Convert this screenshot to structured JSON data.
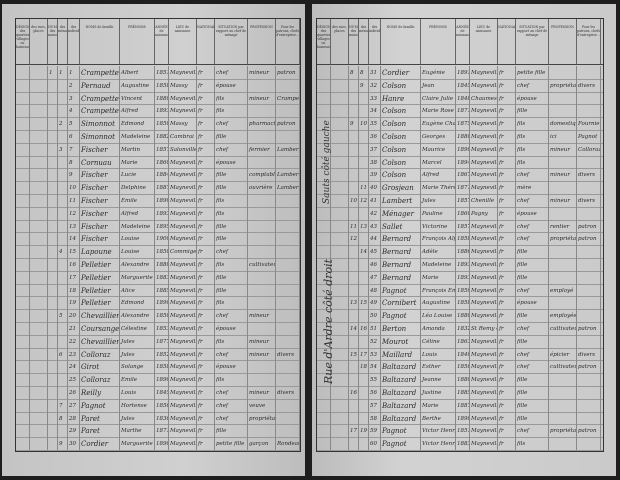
{
  "headers": {
    "designation": "DÉSIGNATION",
    "quartiers": "des quartiers, villages ou hameaux",
    "rues": "des rues, places",
    "numeros": "NUMÉROS",
    "maisons": "des maisons",
    "menages": "des ménages",
    "individus": "des individus",
    "noms": "NOMS de famille",
    "prenoms": "PRÉNOMS",
    "annee": "ANNÉE de naissance",
    "lieu": "LIEU de naissance",
    "nationalite": "NATIONALITÉ",
    "situation": "SITUATION par rapport au chef de ménage",
    "profession": "PROFESSION",
    "patrons": "Pour les patrons, chefs d'entreprise…"
  },
  "left_page": {
    "rows": [
      [
        "1",
        "1",
        "1",
        "Crampette",
        "Albert",
        "1851",
        "Mayneville",
        "fr",
        "chef",
        "mineur",
        "patron"
      ],
      [
        "",
        "",
        "2",
        "Pernaud",
        "Augustine",
        "1858",
        "Massy",
        "fr",
        "épouse",
        "",
        ""
      ],
      [
        "",
        "",
        "3",
        "Crampette",
        "Vincent",
        "1880",
        "Mayneville",
        "fr",
        "fils",
        "mineur",
        "Crampette"
      ],
      [
        "",
        "",
        "4",
        "Crampette",
        "Alfred",
        "1893",
        "Mayneville",
        "fr",
        "fils",
        "",
        ""
      ],
      [
        "",
        "2",
        "5",
        "Simonnot",
        "Edmond",
        "1850",
        "Massy",
        "fr",
        "chef",
        "pharmacien",
        "patron"
      ],
      [
        "",
        "",
        "6",
        "Simonnot",
        "Madeleine",
        "1882",
        "Cambrai",
        "fr",
        "fille",
        "",
        ""
      ],
      [
        "",
        "3",
        "7",
        "Fischer",
        "Martin",
        "1857",
        "Salonville",
        "fr",
        "chef",
        "fermier",
        "Lambert"
      ],
      [
        "",
        "",
        "8",
        "Cornuau",
        "Marie",
        "1860",
        "Mayneville",
        "fr",
        "épouse",
        "",
        ""
      ],
      [
        "",
        "",
        "9",
        "Fischer",
        "Lucie",
        "1884",
        "Mayneville",
        "fr",
        "fille",
        "comptable",
        "Lambert"
      ],
      [
        "",
        "",
        "10",
        "Fischer",
        "Delphine",
        "1887",
        "Mayneville",
        "fr",
        "fille",
        "ouvrière",
        "Lambert"
      ],
      [
        "",
        "",
        "11",
        "Fischer",
        "Emile",
        "1890",
        "Mayneville",
        "fr",
        "fils",
        "",
        ""
      ],
      [
        "",
        "",
        "12",
        "Fischer",
        "Alfred",
        "1893",
        "Mayneville",
        "fr",
        "fils",
        "",
        ""
      ],
      [
        "",
        "",
        "13",
        "Fischer",
        "Madeleine",
        "1895",
        "Mayneville",
        "fr",
        "fille",
        "",
        ""
      ],
      [
        "",
        "",
        "14",
        "Fischer",
        "Louise",
        "1900",
        "Mayneville",
        "fr",
        "fille",
        "",
        ""
      ],
      [
        "",
        "4",
        "15",
        "Lapoune",
        "Louise",
        "1850",
        "Commiges",
        "fr",
        "chef",
        "",
        ""
      ],
      [
        "",
        "",
        "16",
        "Pelletier",
        "Alexandre",
        "1880",
        "Mayneville",
        "fr",
        "fils",
        "cultivateur",
        ""
      ],
      [
        "",
        "",
        "17",
        "Pelletier",
        "Marguerite",
        "1883",
        "Mayneville",
        "fr",
        "fille",
        "",
        ""
      ],
      [
        "",
        "",
        "18",
        "Pelletier",
        "Alice",
        "1885",
        "Mayneville",
        "fr",
        "fille",
        "",
        ""
      ],
      [
        "",
        "",
        "19",
        "Pelletier",
        "Edmond",
        "1890",
        "Mayneville",
        "fr",
        "fils",
        "",
        ""
      ],
      [
        "",
        "5",
        "20",
        "Chevaillier",
        "Alexandre",
        "1850",
        "Mayneville",
        "fr",
        "chef",
        "mineur",
        ""
      ],
      [
        "",
        "",
        "21",
        "Coursange",
        "Célestine",
        "1853",
        "Mayneville",
        "fr",
        "épouse",
        "",
        ""
      ],
      [
        "",
        "",
        "22",
        "Chevaillier",
        "Jules",
        "1877",
        "Mayneville",
        "fr",
        "fils",
        "mineur",
        ""
      ],
      [
        "",
        "6",
        "23",
        "Colloraz",
        "Jules",
        "1852",
        "Mayneville",
        "fr",
        "chef",
        "mineur",
        "divers"
      ],
      [
        "",
        "",
        "24",
        "Girot",
        "Solange",
        "1858",
        "Mayneville",
        "fr",
        "épouse",
        "",
        ""
      ],
      [
        "",
        "",
        "25",
        "Colloraz",
        "Emile",
        "1890",
        "Mayneville",
        "fr",
        "fils",
        "",
        ""
      ],
      [
        "",
        "",
        "26",
        "Reilly",
        "Louis",
        "1845",
        "Mayneville",
        "fr",
        "chef",
        "mineur",
        "divers"
      ],
      [
        "",
        "7",
        "27",
        "Pagnot",
        "Hortense",
        "1856",
        "Mayneville",
        "fr",
        "chef",
        "veuve",
        ""
      ],
      [
        "",
        "8",
        "28",
        "Paret",
        "Jules",
        "1836",
        "Mayneville",
        "fr",
        "chef",
        "propriétaire",
        ""
      ],
      [
        "",
        "",
        "29",
        "Paret",
        "Marthe",
        "1871",
        "Mayneville",
        "fr",
        "fille",
        "",
        ""
      ],
      [
        "",
        "9",
        "30",
        "Cordier",
        "Marguerite",
        "1890",
        "Mayneville",
        "fr",
        "petite fille",
        "garçon",
        "Rondeau"
      ]
    ]
  },
  "right_page": {
    "margin_notes": [
      "Sauts côté gauche",
      "Rue d'Ardre côté droit"
    ],
    "rows": [
      [
        "8",
        "8",
        "31",
        "Cordier",
        "Eugénie",
        "1891",
        "Mayneville",
        "fr",
        "petite fille",
        "",
        ""
      ],
      [
        "",
        "9",
        "32",
        "Colson",
        "Jean",
        "1845",
        "Mayneville",
        "fr",
        "chef",
        "propriétaire",
        "divers"
      ],
      [
        "",
        "",
        "33",
        "Hanre",
        "Claire Julie",
        "1848",
        "Chaumes",
        "fr",
        "épouse",
        "",
        ""
      ],
      [
        "",
        "",
        "34",
        "Colson",
        "Marie Rose",
        "1871",
        "Mayneville",
        "fr",
        "fille",
        "",
        ""
      ],
      [
        "9",
        "10",
        "35",
        "Colson",
        "Eugène Charles",
        "1875",
        "Mayneville",
        "fr",
        "fils",
        "domestique",
        "Fournier"
      ],
      [
        "",
        "",
        "36",
        "Colson",
        "Georges",
        "1880",
        "Mayneville",
        "fr",
        "fils",
        "ici",
        "Pagnot"
      ],
      [
        "",
        "",
        "37",
        "Colson",
        "Maurice",
        "1890",
        "Mayneville",
        "fr",
        "fils",
        "mineur",
        "Colloraz"
      ],
      [
        "",
        "",
        "38",
        "Colson",
        "Marcel",
        "1894",
        "Mayneville",
        "fr",
        "fils",
        "",
        ""
      ],
      [
        "",
        "",
        "39",
        "Colson",
        "Alfred",
        "1867",
        "Mayneville",
        "fr",
        "chef",
        "mineur",
        "divers"
      ],
      [
        "",
        "11",
        "40",
        "Grosjean",
        "Marie Thérèse",
        "1871",
        "Mayneville",
        "fr",
        "mère",
        "",
        ""
      ],
      [
        "10",
        "12",
        "41",
        "Lambert",
        "Jules",
        "1857",
        "Chenille",
        "fr",
        "chef",
        "mineur",
        "divers"
      ],
      [
        "",
        "",
        "42",
        "Ménager",
        "Pauline",
        "1860",
        "Pagny",
        "fr",
        "épouse",
        "",
        ""
      ],
      [
        "11",
        "13",
        "43",
        "Sallet",
        "Victorine",
        "1857",
        "Mayneville",
        "fr",
        "chef",
        "rentier",
        "patron"
      ],
      [
        "12",
        "",
        "44",
        "Bernard",
        "François Alfred",
        "1858",
        "Mayneville",
        "fr",
        "chef",
        "propriétaire",
        "patron"
      ],
      [
        "",
        "14",
        "45",
        "Bernard",
        "Adèle",
        "1886",
        "Mayneville",
        "fr",
        "fille",
        "",
        ""
      ],
      [
        "",
        "",
        "46",
        "Bernard",
        "Madeleine",
        "1893",
        "Mayneville",
        "fr",
        "fille",
        "",
        ""
      ],
      [
        "",
        "",
        "47",
        "Bernard",
        "Marie",
        "1893",
        "Mayneville",
        "fr",
        "fille",
        "",
        ""
      ],
      [
        "",
        "",
        "48",
        "Pagnot",
        "François Emile",
        "1850",
        "Mayneville",
        "fr",
        "chef",
        "employé",
        ""
      ],
      [
        "13",
        "15",
        "49",
        "Cornibert",
        "Augustine",
        "1858",
        "Mayneville",
        "fr",
        "épouse",
        "",
        ""
      ],
      [
        "",
        "",
        "50",
        "Pagnot",
        "Léa Louise",
        "1880",
        "Mayneville",
        "fr",
        "fille",
        "employée",
        ""
      ],
      [
        "14",
        "16",
        "51",
        "Berton",
        "Amanda",
        "1832",
        "St Remy en Bouzemont",
        "fr",
        "chef",
        "cultivateur",
        "patron"
      ],
      [
        "",
        "",
        "52",
        "Mourot",
        "Céline",
        "1863",
        "Mayneville",
        "fr",
        "fille",
        "",
        ""
      ],
      [
        "15",
        "17",
        "53",
        "Maillard",
        "Louis",
        "1840",
        "Mayneville",
        "fr",
        "chef",
        "épicier",
        "divers"
      ],
      [
        "",
        "18",
        "54",
        "Baltazard",
        "Esther",
        "1856",
        "Mayneville",
        "fr",
        "chef",
        "cultivateur",
        "patron"
      ],
      [
        "",
        "",
        "55",
        "Baltazard",
        "Jeanne",
        "1880",
        "Mayneville",
        "fr",
        "fille",
        "",
        ""
      ],
      [
        "16",
        "",
        "56",
        "Baltazard",
        "Justine",
        "1885",
        "Mayneville",
        "fr",
        "fille",
        "",
        ""
      ],
      [
        "",
        "",
        "57",
        "Baltazard",
        "Marie",
        "1887",
        "Mayneville",
        "fr",
        "fille",
        "",
        ""
      ],
      [
        "",
        "",
        "58",
        "Baltazard",
        "Berthe",
        "1890",
        "Mayneville",
        "fr",
        "fille",
        "",
        ""
      ],
      [
        "17",
        "19",
        "59",
        "Pagnot",
        "Victor Henry",
        "1851",
        "Mayneville",
        "fr",
        "chef",
        "propriétaire",
        "patron"
      ],
      [
        "",
        "",
        "60",
        "Pagnot",
        "Victor Henry",
        "1883",
        "Mayneville",
        "fr",
        "fils",
        "",
        ""
      ]
    ]
  }
}
